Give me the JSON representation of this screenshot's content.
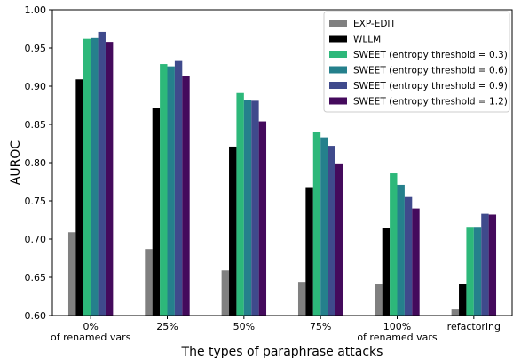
{
  "chart_data": {
    "type": "bar",
    "title": "",
    "xlabel": "The types of paraphrase attacks",
    "ylabel": "AUROC",
    "ylim": [
      0.6,
      1.0
    ],
    "yticks": [
      "0.60",
      "0.65",
      "0.70",
      "0.75",
      "0.80",
      "0.85",
      "0.90",
      "0.95",
      "1.00"
    ],
    "categories": [
      [
        "0%",
        "of renamed vars"
      ],
      [
        "25%"
      ],
      [
        "50%"
      ],
      [
        "75%"
      ],
      [
        "100%",
        "of renamed vars"
      ],
      [
        "refactoring"
      ]
    ],
    "legend_position": "top-right",
    "grid": false,
    "series": [
      {
        "name": "EXP-EDIT",
        "color": "#808080",
        "values": [
          0.709,
          0.687,
          0.659,
          0.644,
          0.641,
          0.608
        ]
      },
      {
        "name": "WLLM",
        "color": "#000000",
        "values": [
          0.909,
          0.872,
          0.821,
          0.768,
          0.714,
          0.641
        ]
      },
      {
        "name": "SWEET (entropy threshold = 0.3)",
        "color": "#2db87a",
        "values": [
          0.962,
          0.929,
          0.891,
          0.84,
          0.786,
          0.716
        ]
      },
      {
        "name": "SWEET (entropy threshold = 0.6)",
        "color": "#25808c",
        "values": [
          0.963,
          0.926,
          0.882,
          0.833,
          0.771,
          0.716
        ]
      },
      {
        "name": "SWEET (entropy threshold = 0.9)",
        "color": "#3f4a8c",
        "values": [
          0.971,
          0.933,
          0.881,
          0.822,
          0.755,
          0.733
        ]
      },
      {
        "name": "SWEET (entropy threshold = 1.2)",
        "color": "#440a5c",
        "values": [
          0.958,
          0.913,
          0.854,
          0.799,
          0.74,
          0.732
        ]
      }
    ]
  }
}
